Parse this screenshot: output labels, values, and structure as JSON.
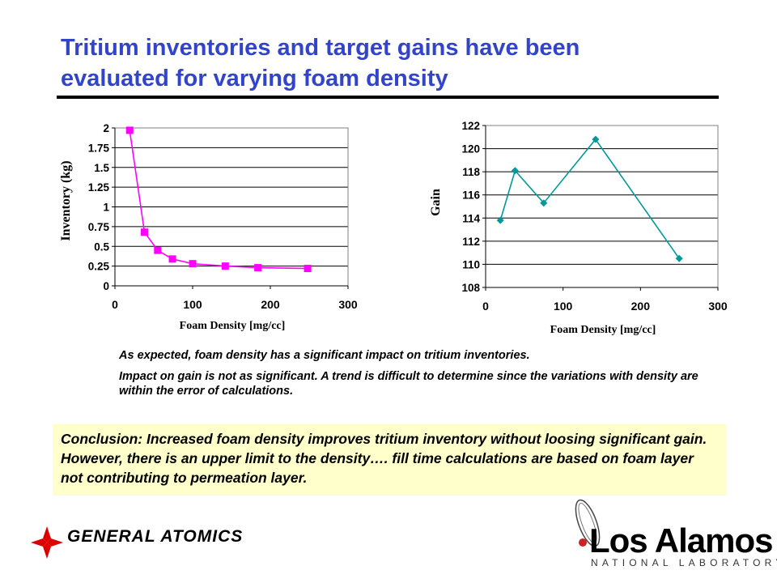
{
  "slide": {
    "title_line1": "Tritium inventories and target gains have been",
    "title_line2": "evaluated for varying foam density"
  },
  "colors": {
    "title": "#3344cc",
    "inventory_series": "#ff00ff",
    "gain_series": "#009999",
    "conclusion_bg": "#ffffcc"
  },
  "chart_data": [
    {
      "type": "line",
      "title": "",
      "xlabel": "Foam Density [mg/cc]",
      "ylabel": "Inventory (kg)",
      "xlim": [
        0,
        300
      ],
      "ylim": [
        0,
        2
      ],
      "xticks": [
        0,
        100,
        200,
        300
      ],
      "xtick_labels": [
        "0",
        "100",
        "200",
        "300"
      ],
      "yticks": [
        0,
        0.25,
        0.5,
        0.75,
        1,
        1.25,
        1.5,
        1.75,
        2
      ],
      "ytick_labels": [
        "0",
        "0.25",
        "0.5",
        "0.75",
        "1",
        "1.25",
        "1.5",
        "1.75",
        "2"
      ],
      "grid": "horizontal",
      "marker": "square",
      "series": [
        {
          "x": [
            19,
            38,
            55,
            74,
            100,
            142,
            184,
            248
          ],
          "y": [
            1.97,
            0.68,
            0.45,
            0.34,
            0.28,
            0.25,
            0.23,
            0.22
          ]
        }
      ]
    },
    {
      "type": "line",
      "title": "",
      "xlabel": "Foam Density [mg/cc]",
      "ylabel": "Gain",
      "xlim": [
        0,
        300
      ],
      "ylim": [
        108,
        122
      ],
      "xticks": [
        0,
        100,
        200,
        300
      ],
      "xtick_labels": [
        "0",
        "100",
        "200",
        "300"
      ],
      "yticks": [
        108,
        110,
        112,
        114,
        116,
        118,
        120,
        122
      ],
      "ytick_labels": [
        "108",
        "110",
        "112",
        "114",
        "116",
        "118",
        "120",
        "122"
      ],
      "grid": "horizontal",
      "marker": "diamond",
      "series": [
        {
          "x": [
            19,
            38,
            75,
            142,
            250
          ],
          "y": [
            113.8,
            118.1,
            115.3,
            120.8,
            110.5
          ]
        }
      ]
    }
  ],
  "notes": [
    "As expected, foam density has a significant impact on tritium inventories.",
    "Impact on gain is not as significant. A trend is difficult to determine since the variations with density are within the error of calculations."
  ],
  "conclusion": "Conclusion: Increased foam density improves tritium inventory without loosing significant gain. However, there is an upper limit to the density…. fill time calculations are based on foam layer not contributing to permeation layer.",
  "logos": {
    "general_atomics": "GENERAL ATOMICS",
    "los_alamos_name": "Los Alamos",
    "los_alamos_sub": "NATIONAL LABORATORY"
  }
}
